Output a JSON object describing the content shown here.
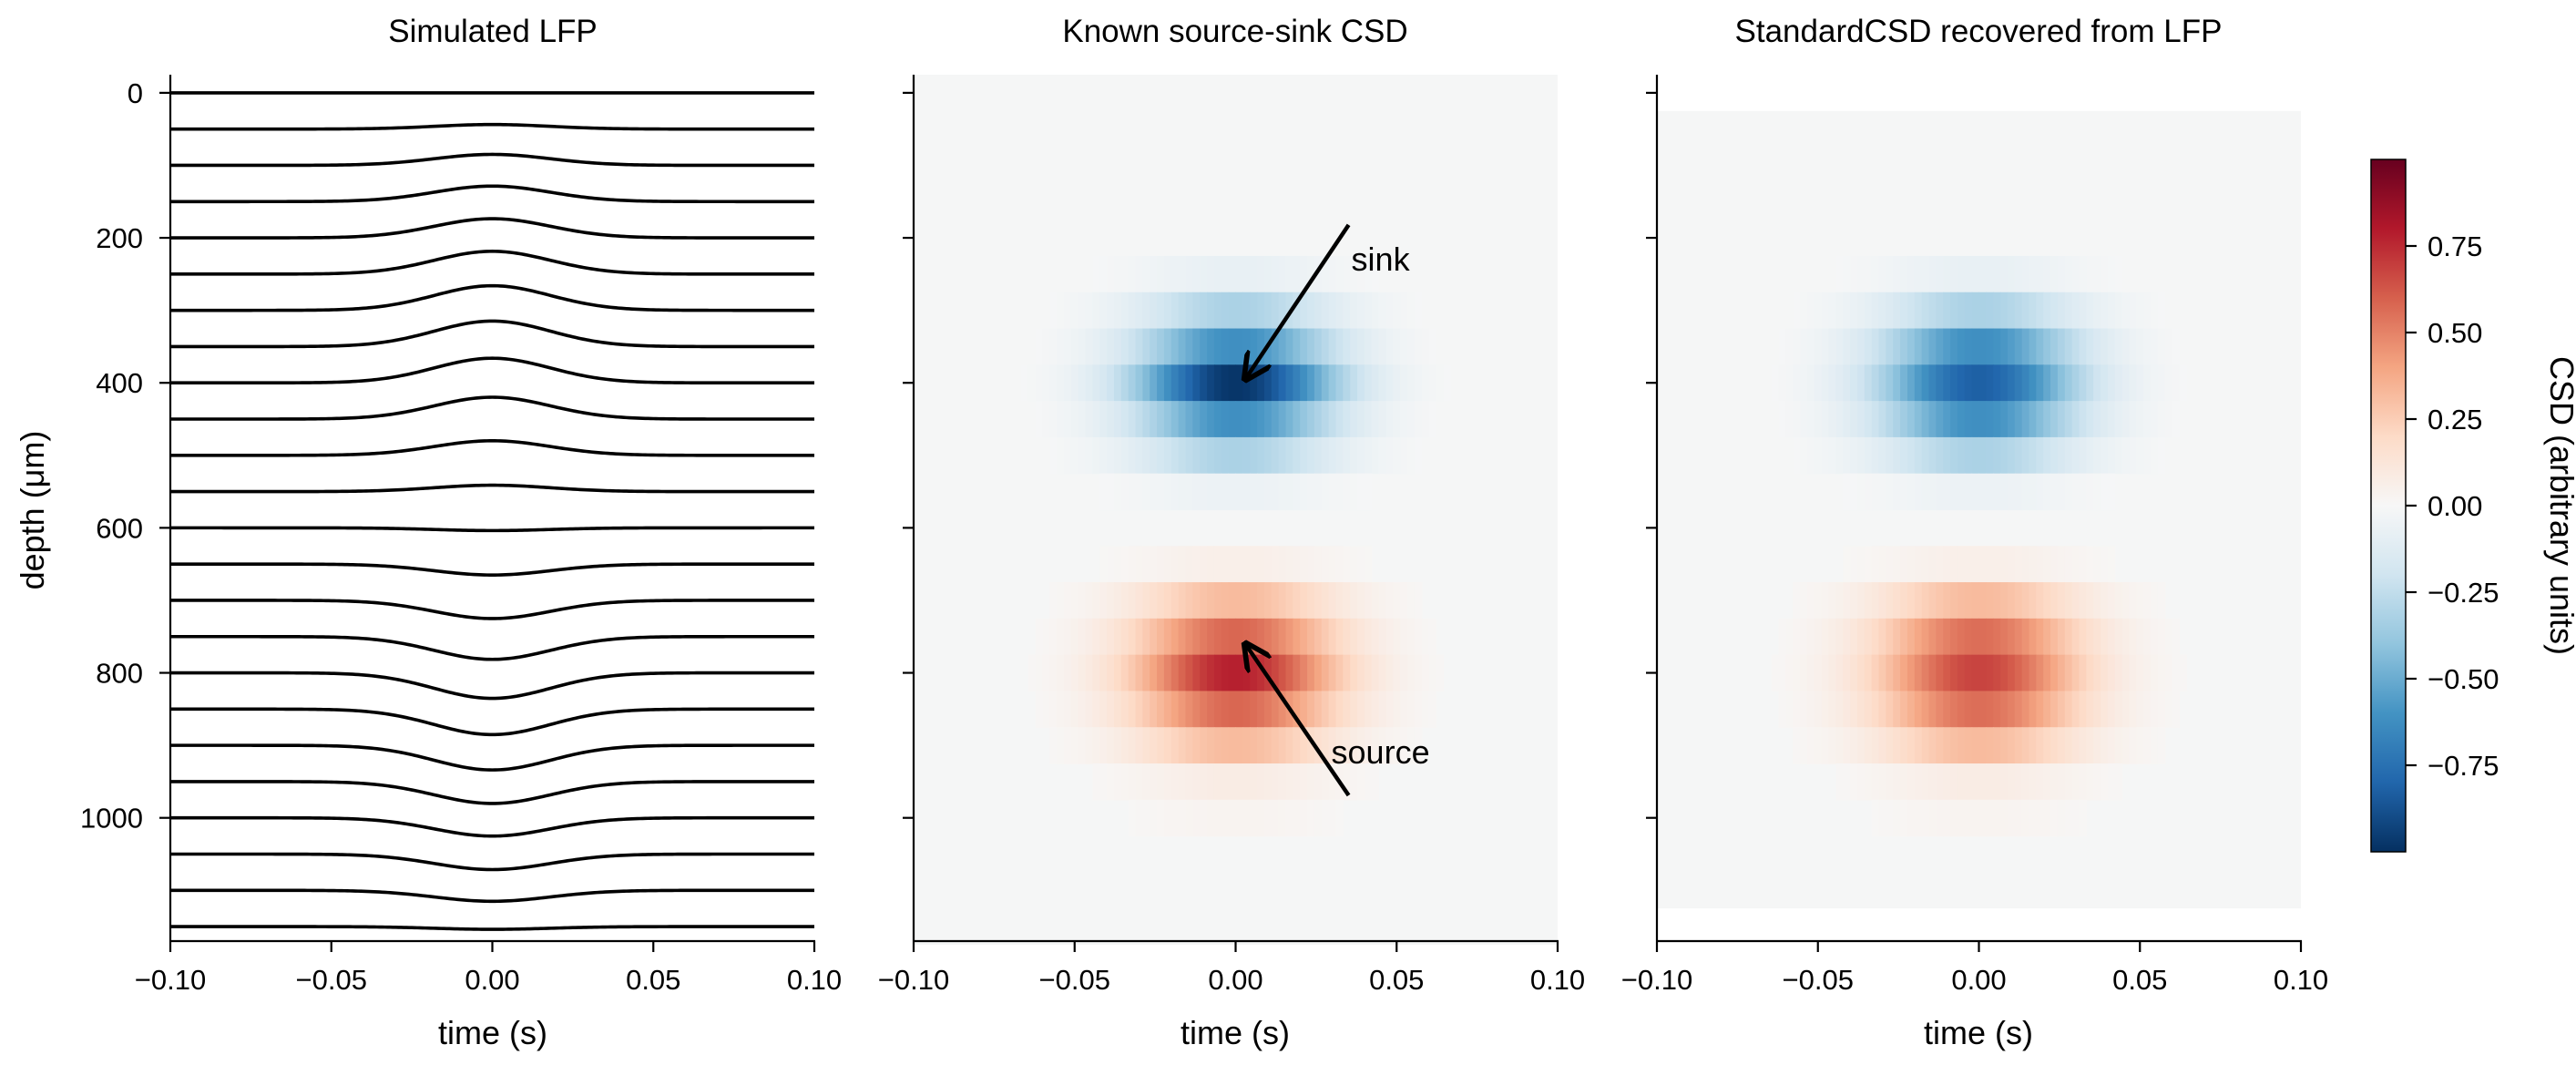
{
  "chart_data": [
    {
      "type": "line",
      "title": "Simulated LFP",
      "xlabel": "time (s)",
      "ylabel": "depth (μm)",
      "xlim": [
        -0.1,
        0.1
      ],
      "ylim": [
        1170,
        -25
      ],
      "xticks": [
        -0.1,
        -0.05,
        0.0,
        0.05,
        0.1
      ],
      "xtick_labels": [
        "−0.10",
        "−0.05",
        "0.00",
        "0.05",
        "0.10"
      ],
      "yticks": [
        0,
        200,
        400,
        600,
        800,
        1000
      ],
      "ytick_labels": [
        "0",
        "200",
        "400",
        "600",
        "800",
        "1000"
      ],
      "trace_color": "#000000",
      "pulse_width_s": 0.018,
      "series": [
        {
          "depth": 0,
          "amplitude": 0
        },
        {
          "depth": 50,
          "amplitude": 5
        },
        {
          "depth": 100,
          "amplitude": 12
        },
        {
          "depth": 150,
          "amplitude": 17
        },
        {
          "depth": 200,
          "amplitude": 21
        },
        {
          "depth": 250,
          "amplitude": 25
        },
        {
          "depth": 300,
          "amplitude": 27
        },
        {
          "depth": 350,
          "amplitude": 28
        },
        {
          "depth": 400,
          "amplitude": 27
        },
        {
          "depth": 450,
          "amplitude": 24
        },
        {
          "depth": 500,
          "amplitude": 16
        },
        {
          "depth": 550,
          "amplitude": 7
        },
        {
          "depth": 600,
          "amplitude": -3
        },
        {
          "depth": 650,
          "amplitude": -12
        },
        {
          "depth": 700,
          "amplitude": -20
        },
        {
          "depth": 750,
          "amplitude": -25
        },
        {
          "depth": 800,
          "amplitude": -28
        },
        {
          "depth": 850,
          "amplitude": -28
        },
        {
          "depth": 900,
          "amplitude": -27
        },
        {
          "depth": 950,
          "amplitude": -24
        },
        {
          "depth": 1000,
          "amplitude": -20
        },
        {
          "depth": 1050,
          "amplitude": -17
        },
        {
          "depth": 1100,
          "amplitude": -12
        },
        {
          "depth": 1150,
          "amplitude": -3
        }
      ]
    },
    {
      "type": "heatmap",
      "title": "Known source-sink CSD",
      "xlabel": "time (s)",
      "xlim": [
        -0.1,
        0.1
      ],
      "xticks": [
        -0.1,
        -0.05,
        0.0,
        0.05,
        0.1
      ],
      "xtick_labels": [
        "−0.10",
        "−0.05",
        "0.00",
        "0.05",
        "0.10"
      ],
      "y_extent": [
        -25,
        1175
      ],
      "background_color": "#f5f6f6",
      "time_sigma_s": 0.022,
      "rows": [
        {
          "depth": 250,
          "value": -0.08
        },
        {
          "depth": 300,
          "value": -0.32
        },
        {
          "depth": 350,
          "value": -0.62
        },
        {
          "depth": 400,
          "value": -0.98
        },
        {
          "depth": 450,
          "value": -0.62
        },
        {
          "depth": 500,
          "value": -0.32
        },
        {
          "depth": 550,
          "value": -0.06
        },
        {
          "depth": 650,
          "value": 0.06
        },
        {
          "depth": 700,
          "value": 0.32
        },
        {
          "depth": 750,
          "value": 0.58
        },
        {
          "depth": 800,
          "value": 0.78
        },
        {
          "depth": 850,
          "value": 0.58
        },
        {
          "depth": 900,
          "value": 0.32
        },
        {
          "depth": 950,
          "value": 0.08
        },
        {
          "depth": 1000,
          "value": 0.03
        }
      ],
      "annotations": [
        {
          "text": "sink",
          "text_x": 0.045,
          "text_y": 245,
          "arrow_to_x": 0.003,
          "arrow_to_y": 395
        },
        {
          "text": "source",
          "text_x": 0.045,
          "text_y": 925,
          "arrow_to_x": 0.003,
          "arrow_to_y": 760
        }
      ]
    },
    {
      "type": "heatmap",
      "title": "StandardCSD recovered from LFP",
      "xlabel": "time (s)",
      "xlim": [
        -0.1,
        0.1
      ],
      "xticks": [
        -0.1,
        -0.05,
        0.0,
        0.05,
        0.1
      ],
      "xtick_labels": [
        "−0.10",
        "−0.05",
        "0.00",
        "0.05",
        "0.10"
      ],
      "y_extent": [
        25,
        1125
      ],
      "background_color": "#f5f6f6",
      "time_sigma_s": 0.022,
      "rows": [
        {
          "depth": 250,
          "value": -0.08
        },
        {
          "depth": 300,
          "value": -0.32
        },
        {
          "depth": 350,
          "value": -0.62
        },
        {
          "depth": 400,
          "value": -0.82
        },
        {
          "depth": 450,
          "value": -0.62
        },
        {
          "depth": 500,
          "value": -0.32
        },
        {
          "depth": 550,
          "value": -0.06
        },
        {
          "depth": 650,
          "value": 0.06
        },
        {
          "depth": 700,
          "value": 0.32
        },
        {
          "depth": 750,
          "value": 0.56
        },
        {
          "depth": 800,
          "value": 0.68
        },
        {
          "depth": 850,
          "value": 0.56
        },
        {
          "depth": 900,
          "value": 0.32
        },
        {
          "depth": 950,
          "value": 0.08
        },
        {
          "depth": 1000,
          "value": 0.03
        },
        {
          "depth": 1050,
          "value": 0.01
        }
      ]
    }
  ],
  "colorbar": {
    "label": "CSD (arbitrary units)",
    "colormap": "RdBu_r",
    "range": [
      -1.0,
      1.0
    ],
    "ticks": [
      0.75,
      0.5,
      0.25,
      0.0,
      -0.25,
      -0.5,
      -0.75
    ],
    "tick_labels": [
      "0.75",
      "0.50",
      "0.25",
      "0.00",
      "−0.25",
      "−0.50",
      "−0.75"
    ],
    "stops": [
      "#053061",
      "#2166ac",
      "#4393c3",
      "#92c5de",
      "#d1e5f0",
      "#f7f7f7",
      "#fddbc7",
      "#f4a582",
      "#d6604d",
      "#b2182b",
      "#67001f"
    ]
  }
}
